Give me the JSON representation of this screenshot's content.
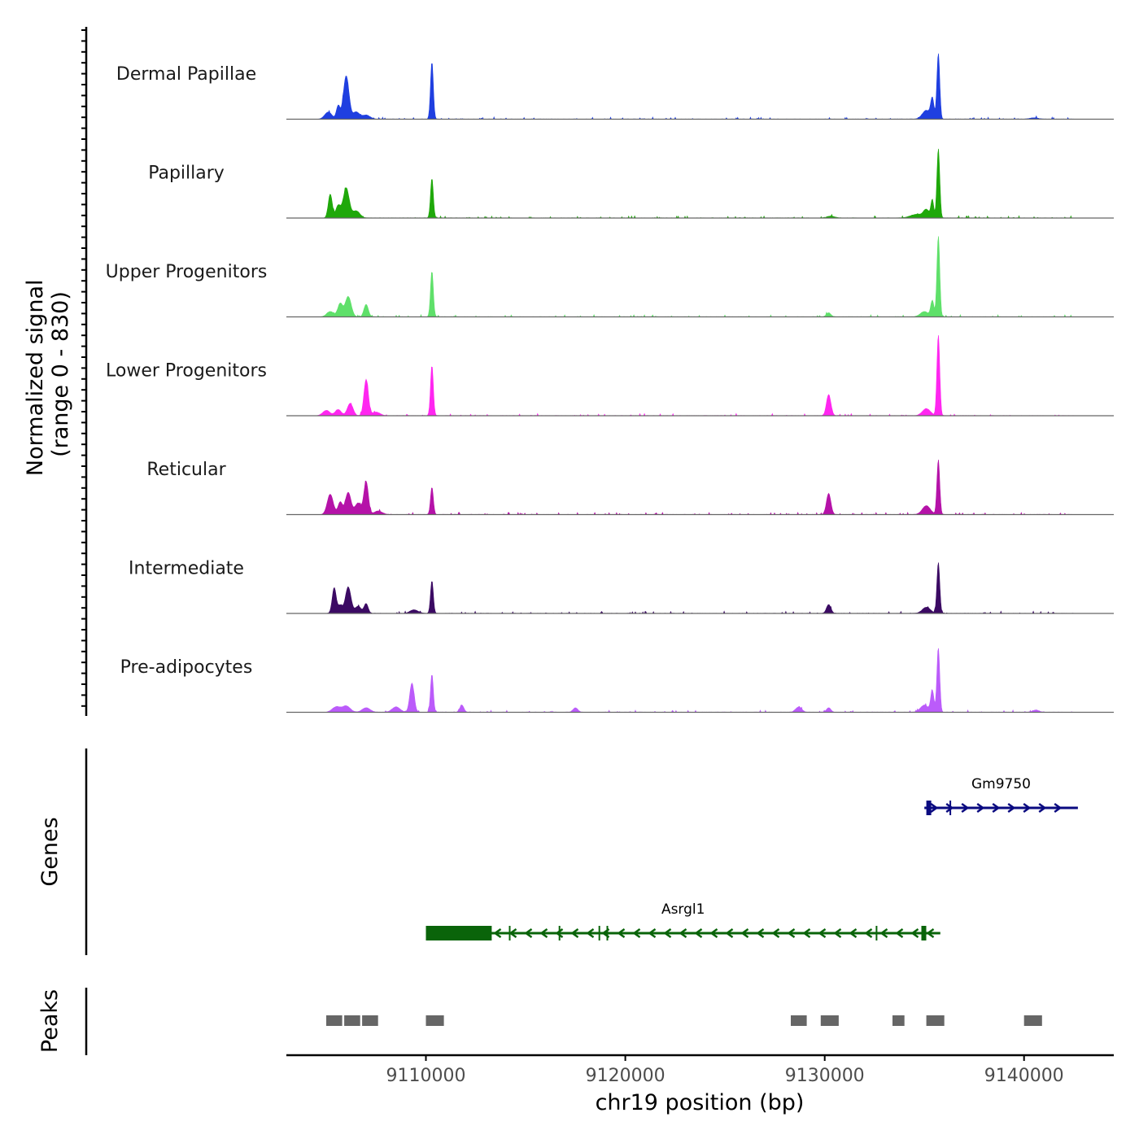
{
  "chart_data": {
    "type": "area",
    "chromosome": "chr19",
    "x_range": [
      9103000,
      9144500
    ],
    "signal_range": [
      0,
      830
    ],
    "y_axis_title": [
      "Normalized signal",
      "(range 0 - 830)"
    ],
    "x_axis_title": "chr19 position (bp)",
    "x_ticks": [
      9110000,
      9120000,
      9130000,
      9140000
    ],
    "x_tick_labels": [
      "9110000",
      "9120000",
      "9130000",
      "9140000"
    ],
    "baseline_color": "#666666",
    "tracks": [
      {
        "name": "Dermal Papillae",
        "color": "#1f3fe0",
        "max": 830,
        "peaks": [
          [
            9105100,
            80,
            180
          ],
          [
            9105600,
            150,
            90
          ],
          [
            9106000,
            490,
            140
          ],
          [
            9106500,
            80,
            160
          ],
          [
            9107000,
            45,
            200
          ],
          [
            9110300,
            650,
            70
          ],
          [
            9135100,
            100,
            200
          ],
          [
            9135400,
            220,
            80
          ],
          [
            9135700,
            750,
            70
          ],
          [
            9140500,
            15,
            200
          ]
        ]
      },
      {
        "name": "Papillary",
        "color": "#1fa80a",
        "max": 830,
        "peaks": [
          [
            9105200,
            270,
            100
          ],
          [
            9105600,
            140,
            120
          ],
          [
            9106000,
            340,
            150
          ],
          [
            9106500,
            80,
            180
          ],
          [
            9110300,
            450,
            70
          ],
          [
            9130300,
            20,
            200
          ],
          [
            9134600,
            40,
            300
          ],
          [
            9135100,
            90,
            150
          ],
          [
            9135400,
            200,
            70
          ],
          [
            9135700,
            790,
            70
          ]
        ]
      },
      {
        "name": "Upper Progenitors",
        "color": "#5fe06a",
        "max": 830,
        "peaks": [
          [
            9105200,
            60,
            180
          ],
          [
            9105700,
            150,
            120
          ],
          [
            9106100,
            230,
            150
          ],
          [
            9107000,
            140,
            110
          ],
          [
            9110300,
            520,
            70
          ],
          [
            9130200,
            45,
            110
          ],
          [
            9135000,
            60,
            200
          ],
          [
            9135400,
            180,
            80
          ],
          [
            9135700,
            920,
            70
          ]
        ]
      },
      {
        "name": "Lower Progenitors",
        "color": "#ff26f0",
        "max": 830,
        "peaks": [
          [
            9105000,
            60,
            180
          ],
          [
            9105600,
            70,
            150
          ],
          [
            9106200,
            140,
            140
          ],
          [
            9107000,
            410,
            110
          ],
          [
            9107500,
            40,
            200
          ],
          [
            9110300,
            570,
            70
          ],
          [
            9130200,
            240,
            110
          ],
          [
            9135100,
            80,
            200
          ],
          [
            9135700,
            920,
            70
          ]
        ]
      },
      {
        "name": "Reticular",
        "color": "#b512a8",
        "max": 830,
        "peaks": [
          [
            9105200,
            230,
            150
          ],
          [
            9105700,
            140,
            110
          ],
          [
            9106100,
            250,
            140
          ],
          [
            9106600,
            130,
            160
          ],
          [
            9107000,
            370,
            110
          ],
          [
            9107600,
            40,
            200
          ],
          [
            9110300,
            310,
            70
          ],
          [
            9130200,
            240,
            110
          ],
          [
            9135100,
            100,
            200
          ],
          [
            9135700,
            620,
            70
          ]
        ]
      },
      {
        "name": "Intermediate",
        "color": "#3b0a63",
        "max": 830,
        "peaks": [
          [
            9105400,
            290,
            100
          ],
          [
            9105700,
            90,
            110
          ],
          [
            9106100,
            300,
            140
          ],
          [
            9106600,
            80,
            150
          ],
          [
            9107000,
            110,
            100
          ],
          [
            9109400,
            40,
            200
          ],
          [
            9110300,
            370,
            70
          ],
          [
            9130200,
            100,
            110
          ],
          [
            9135100,
            70,
            200
          ],
          [
            9135700,
            580,
            70
          ]
        ]
      },
      {
        "name": "Pre-adipocytes",
        "color": "#bb5bfa",
        "max": 830,
        "peaks": [
          [
            9105500,
            60,
            200
          ],
          [
            9106000,
            70,
            200
          ],
          [
            9107000,
            50,
            200
          ],
          [
            9108500,
            60,
            200
          ],
          [
            9109300,
            330,
            110
          ],
          [
            9110300,
            430,
            70
          ],
          [
            9111800,
            80,
            100
          ],
          [
            9117500,
            50,
            120
          ],
          [
            9128700,
            60,
            150
          ],
          [
            9130200,
            50,
            110
          ],
          [
            9135000,
            80,
            200
          ],
          [
            9135400,
            240,
            80
          ],
          [
            9135700,
            730,
            70
          ],
          [
            9140600,
            25,
            150
          ]
        ]
      }
    ],
    "genes_label": "Genes",
    "genes": [
      {
        "name": "Gm9750",
        "strand": "+",
        "color": "#0a0a80",
        "start": 9135000,
        "end": 9142700,
        "exons": [
          [
            9135100,
            9135350
          ]
        ],
        "thick_exons": [
          [
            9135100,
            9135300
          ]
        ],
        "thin_marks": [
          9136300
        ]
      },
      {
        "name": "Asrgl1",
        "strand": "-",
        "color": "#0a640a",
        "start": 9110000,
        "end": 9135800,
        "exons": [
          [
            9110000,
            9113300
          ],
          [
            9134800,
            9135000
          ]
        ],
        "thick_exons": [
          [
            9110000,
            9113300
          ],
          [
            9134850,
            9135000
          ]
        ],
        "thin_marks": [
          9114200,
          9116700,
          9118700,
          9119100,
          9132600
        ]
      }
    ],
    "peaks_label": "Peaks",
    "peak_regions": [
      [
        9105000,
        9105800
      ],
      [
        9105900,
        9106700
      ],
      [
        9106800,
        9107600
      ],
      [
        9110000,
        9110900
      ],
      [
        9128300,
        9129100
      ],
      [
        9129800,
        9130700
      ],
      [
        9133400,
        9134000
      ],
      [
        9135100,
        9136000
      ],
      [
        9140000,
        9140900
      ]
    ]
  }
}
